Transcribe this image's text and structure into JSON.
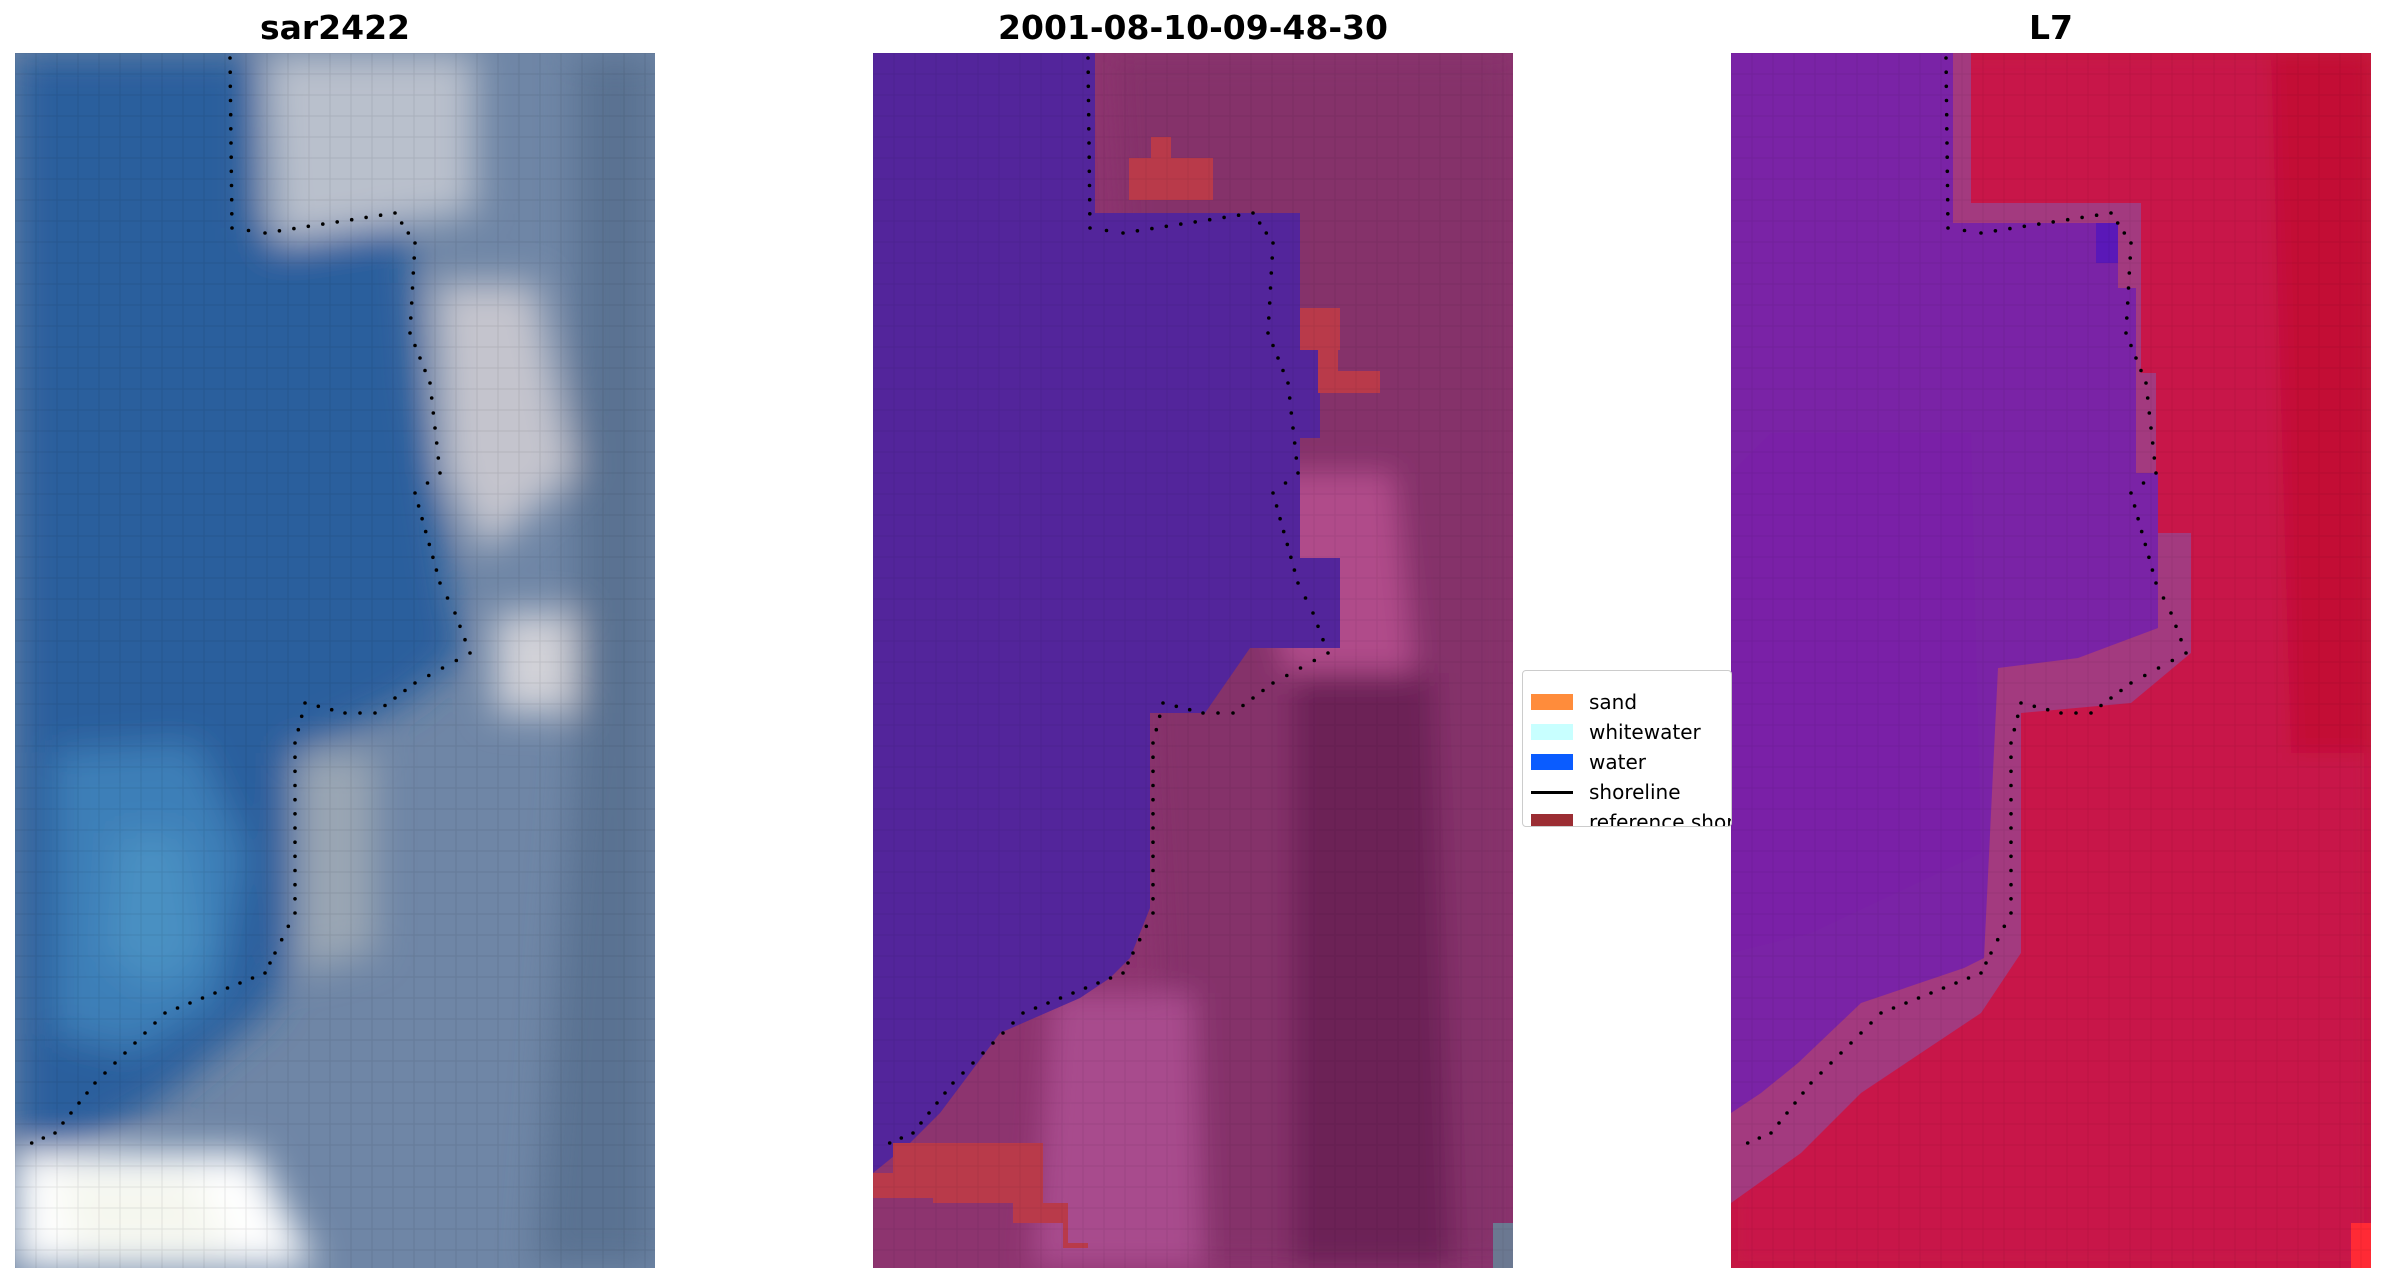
{
  "panels": {
    "left": {
      "title": "sar2422"
    },
    "middle": {
      "title": "2001-08-10-09-48-30"
    },
    "right": {
      "title": "L7"
    }
  },
  "legend": {
    "items": [
      {
        "label": "sand",
        "kind": "patch",
        "color": "#ff8c3b"
      },
      {
        "label": "whitewater",
        "kind": "patch",
        "color": "#c8ffff"
      },
      {
        "label": "water",
        "kind": "patch",
        "color": "#0a5cff"
      },
      {
        "label": "shoreline",
        "kind": "line",
        "color": "#000000"
      },
      {
        "label": "reference shoreline",
        "kind": "patch",
        "color": "#9b2d33"
      }
    ]
  },
  "colors": {
    "rgb_water": "#2a5f9e",
    "rgb_land": "#7a8aa3",
    "class_water": "#53259b",
    "class_land": "#8d346f",
    "class_sand_overlay": "#b93a4a",
    "index_water": "#7a23a6",
    "index_land": "#c4163f",
    "shoreline_dots": "#000000"
  }
}
